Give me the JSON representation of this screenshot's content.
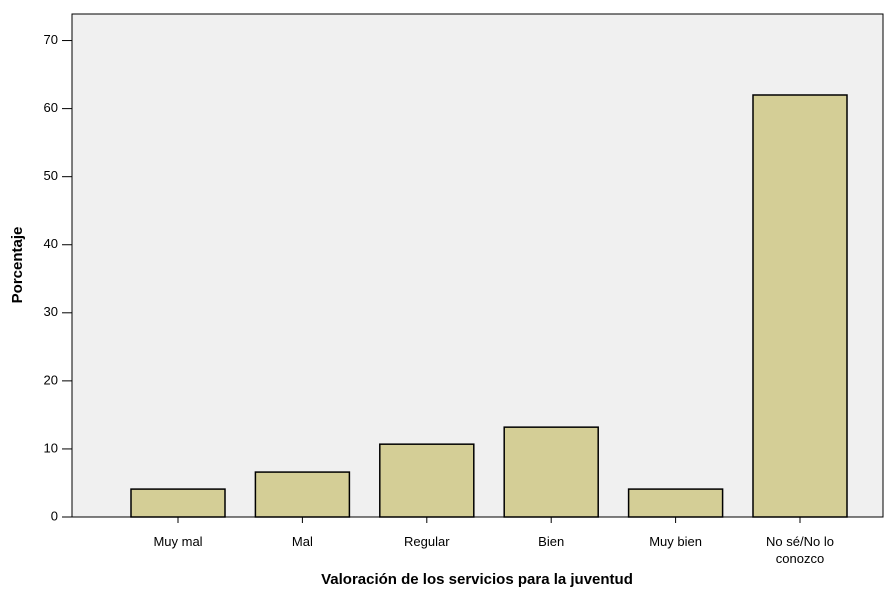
{
  "chart_data": {
    "type": "bar",
    "xlabel": "Valoración de los servicios para la juventud",
    "ylabel": "Porcentaje",
    "categories": [
      "Muy mal",
      "Mal",
      "Regular",
      "Bien",
      "Muy bien",
      "No sé/No lo conozco"
    ],
    "values": [
      4.1,
      6.6,
      10.7,
      13.2,
      4.1,
      62.0
    ],
    "color": "#d4ce96",
    "ylim": [
      0,
      73.9
    ],
    "yticks": [
      0,
      10,
      20,
      30,
      40,
      50,
      60,
      70
    ]
  }
}
